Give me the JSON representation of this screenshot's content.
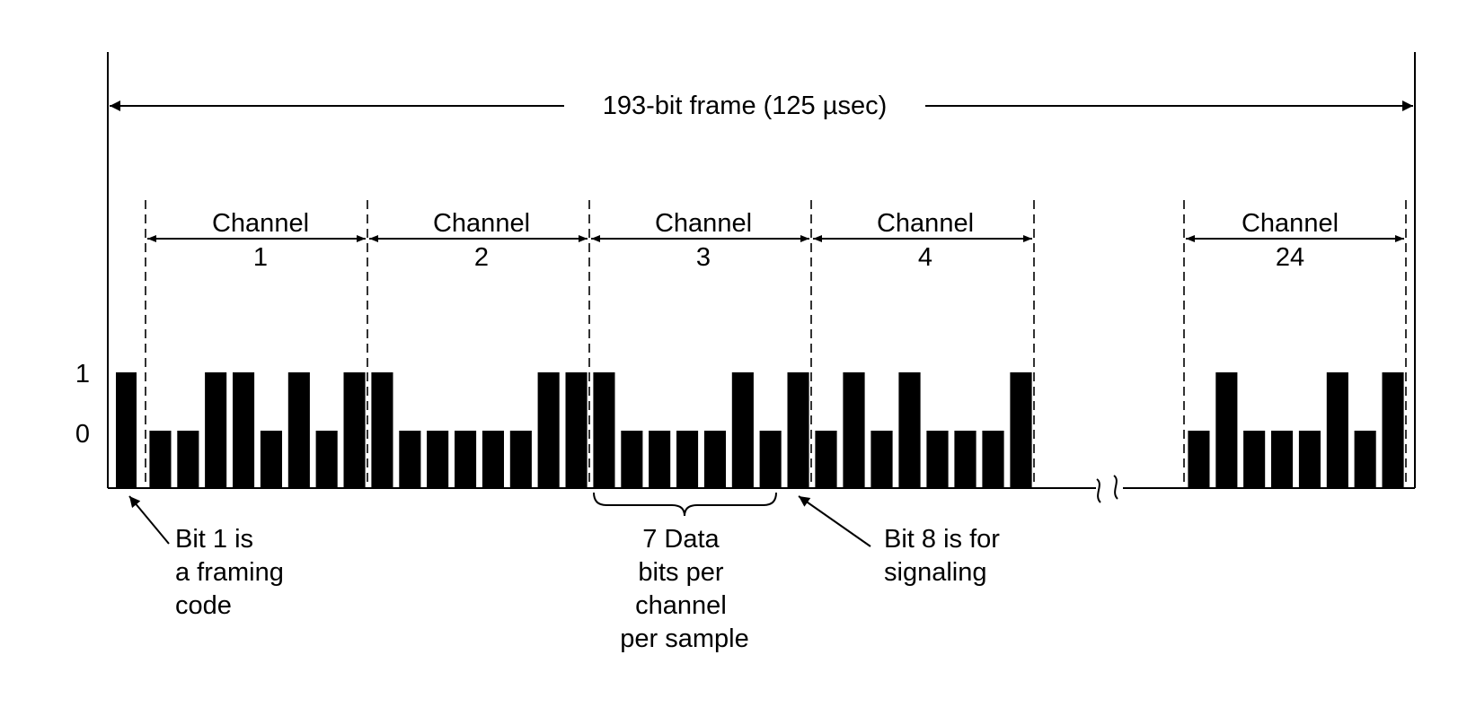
{
  "frame": {
    "label": "193-bit frame  (125 µsec)"
  },
  "levels": {
    "one": "1",
    "zero": "0"
  },
  "framing_bit": {
    "value": 1
  },
  "channels": [
    {
      "title": "Channel",
      "number": "1",
      "bits": [
        0,
        0,
        1,
        1,
        0,
        1,
        0,
        1
      ]
    },
    {
      "title": "Channel",
      "number": "2",
      "bits": [
        1,
        0,
        0,
        0,
        0,
        0,
        1,
        1
      ]
    },
    {
      "title": "Channel",
      "number": "3",
      "bits": [
        1,
        0,
        0,
        0,
        0,
        1,
        0,
        1
      ]
    },
    {
      "title": "Channel",
      "number": "4",
      "bits": [
        0,
        1,
        0,
        1,
        0,
        0,
        0,
        1
      ]
    },
    {
      "title": "Channel",
      "number": "24",
      "bits": [
        0,
        1,
        0,
        0,
        0,
        1,
        0,
        1
      ]
    }
  ],
  "annotations": {
    "framing": [
      "Bit 1 is",
      "a framing",
      "code"
    ],
    "data_bits": [
      "7 Data",
      "bits per",
      "channel",
      "per sample"
    ],
    "signaling": [
      "Bit 8 is for",
      "signaling"
    ]
  },
  "colors": {
    "ink": "#000000",
    "background": "#ffffff"
  }
}
